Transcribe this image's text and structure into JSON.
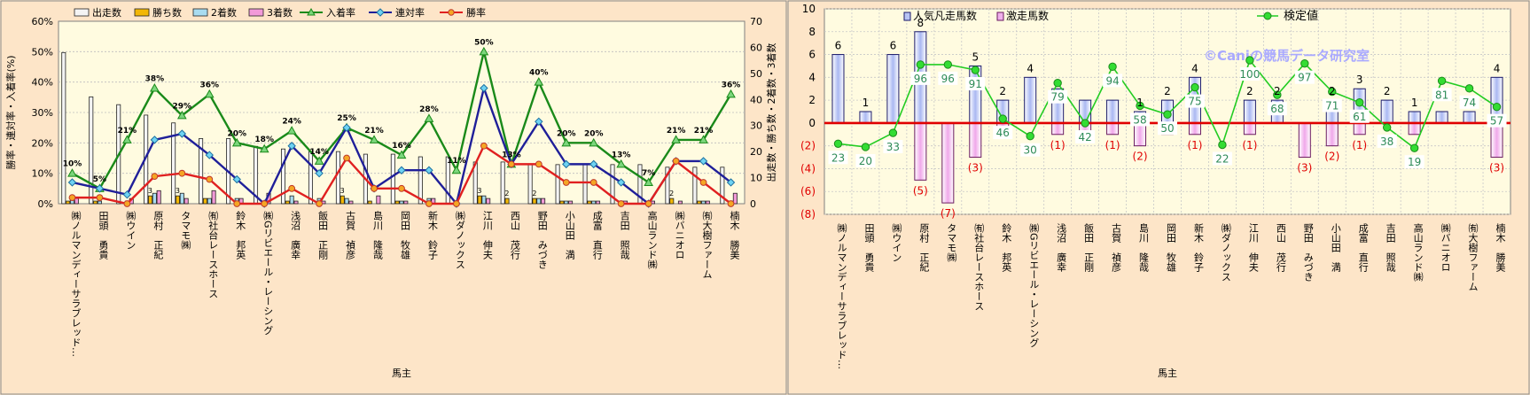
{
  "chart_data": [
    {
      "type": "bar",
      "title": "",
      "xlabel": "馬主",
      "ylabel_left": "勝率・連対率・入着率(%)",
      "ylabel_right": "出走数・勝ち数・2着数・3着数",
      "ylim_left": [
        0,
        60
      ],
      "ylim_right": [
        0,
        70
      ],
      "left_ticks": [
        "0%",
        "10%",
        "20%",
        "30%",
        "40%",
        "50%",
        "60%"
      ],
      "right_ticks": [
        "0",
        "10",
        "20",
        "30",
        "40",
        "50",
        "60",
        "70"
      ],
      "legend_position": "top",
      "categories": [
        "㈱ノルマンディーサラブレッド…",
        "田頭　勇貴",
        "㈱ウイン",
        "原村　正紀",
        "タマモ㈱",
        "㈲社台レースホース",
        "鈴木　邦英",
        "㈱Gリビエール・レーシング",
        "浅沼　廣幸",
        "飯田　正剛",
        "古賀　禎彦",
        "島川　隆哉",
        "岡田　牧雄",
        "新木　鈴子",
        "㈱ダノックス",
        "江川　伸夫",
        "西山　茂行",
        "野田　みづき",
        "小山田　満",
        "成富　直行",
        "吉田　照哉",
        "高山ランド㈱",
        "㈱バニオロ",
        "㈲大樹ファーム",
        "楠木　勝美"
      ],
      "series": [
        {
          "name": "出走数",
          "axis": "right",
          "color": "#f4f4f4",
          "values": [
            58,
            41,
            38,
            34,
            31,
            25,
            25,
            22,
            21,
            20,
            20,
            19,
            19,
            18,
            18,
            16,
            16,
            15,
            15,
            15,
            15,
            15,
            14,
            14,
            14
          ]
        },
        {
          "name": "勝ち数",
          "axis": "right",
          "color": "#f2b705",
          "values": [
            1,
            1,
            0,
            3,
            3,
            2,
            0,
            0,
            1,
            0,
            3,
            1,
            1,
            0,
            0,
            3,
            2,
            2,
            1,
            1,
            0,
            0,
            2,
            1,
            0
          ]
        },
        {
          "name": "2着数",
          "axis": "right",
          "color": "#a9dcf0",
          "values": [
            3,
            1,
            1,
            4,
            4,
            2,
            2,
            0,
            3,
            2,
            2,
            0,
            1,
            2,
            1,
            3,
            0,
            2,
            1,
            1,
            1,
            0,
            0,
            1,
            1
          ]
        },
        {
          "name": "3着数",
          "axis": "right",
          "color": "#f29ad8",
          "values": [
            2,
            0,
            2,
            5,
            2,
            5,
            2,
            4,
            1,
            1,
            1,
            3,
            1,
            2,
            0,
            2,
            0,
            2,
            1,
            1,
            1,
            1,
            1,
            1,
            4
          ]
        },
        {
          "name": "入着率",
          "axis": "left",
          "color": "#1a8a1a",
          "marker": "triangle",
          "values": [
            10,
            5,
            21,
            38,
            29,
            36,
            20,
            18,
            24,
            14,
            25,
            21,
            16,
            28,
            11,
            50,
            13,
            40,
            20,
            20,
            13,
            7,
            21,
            21,
            36
          ]
        },
        {
          "name": "連対率",
          "axis": "left",
          "color": "#1f1f99",
          "marker": "diamond",
          "values": [
            7,
            5,
            3,
            21,
            23,
            16,
            8,
            0,
            19,
            10,
            25,
            5,
            11,
            11,
            0,
            38,
            13,
            27,
            13,
            13,
            7,
            0,
            14,
            14,
            7
          ]
        },
        {
          "name": "勝率",
          "axis": "left",
          "color": "#e02020",
          "marker": "circle",
          "values": [
            2,
            2,
            0,
            9,
            10,
            8,
            0,
            0,
            5,
            0,
            15,
            5,
            5,
            0,
            0,
            19,
            13,
            13,
            7,
            7,
            0,
            0,
            14,
            7,
            0
          ]
        }
      ],
      "point_labels_series": "入着率",
      "point_labels": [
        "10%",
        "5%",
        "21%",
        "38%",
        "29%",
        "36%",
        "20%",
        "18%",
        "24%",
        "14%",
        "25%",
        "21%",
        "16%",
        "28%",
        "11%",
        "50%",
        "13%",
        "40%",
        "20%",
        "20%",
        "13%",
        "7%",
        "21%",
        "21%",
        "36%"
      ],
      "win_labels": [
        "",
        "",
        "",
        "3",
        "3",
        "",
        "",
        "",
        "",
        "",
        "3",
        "",
        "",
        "",
        "",
        "3",
        "2",
        "2",
        "",
        "",
        "",
        "",
        "2",
        "",
        ""
      ]
    },
    {
      "type": "bar",
      "title": "",
      "xlabel": "馬主",
      "ylim": [
        -8,
        10
      ],
      "y_ticks": [
        "10",
        "8",
        "6",
        "4",
        "2",
        "0",
        "(2)",
        "(4)",
        "(6)",
        "(8)"
      ],
      "legend_position": "top",
      "legend": [
        "人気凡走馬数",
        "激走馬数",
        "検定値"
      ],
      "watermark": "©Caniの競馬データ研究室",
      "categories": [
        "㈱ノルマンディーサラブレッド…",
        "田頭　勇貴",
        "㈱ウイン",
        "原村　正紀",
        "タマモ㈱",
        "㈲社台レースホース",
        "鈴木　邦英",
        "㈱Gリビエール・レーシング",
        "浅沼　廣幸",
        "飯田　正剛",
        "古賀　禎彦",
        "島川　隆哉",
        "岡田　牧雄",
        "新木　鈴子",
        "㈱ダノックス",
        "江川　伸夫",
        "西山　茂行",
        "野田　みづき",
        "小山田　満",
        "成富　直行",
        "吉田　照哉",
        "高山ランド㈱",
        "㈱バニオロ",
        "㈲大樹ファーム",
        "楠木　勝美"
      ],
      "series": [
        {
          "name": "激走馬数",
          "color": "#b8c4f4",
          "values": [
            6,
            1,
            6,
            8,
            0,
            5,
            2,
            4,
            3,
            2,
            2,
            1,
            2,
            4,
            0,
            2,
            2,
            0,
            2,
            3,
            2,
            1,
            1,
            1,
            4
          ]
        },
        {
          "name": "人気凡走馬数",
          "color": "#f0b0ec",
          "values": [
            0,
            0,
            0,
            -5,
            -7,
            -3,
            -1,
            0,
            -1,
            -1,
            -1,
            -2,
            -1,
            -1,
            0,
            -1,
            0,
            -3,
            -2,
            -1,
            0,
            -1,
            0,
            0,
            -3
          ]
        },
        {
          "name": "検定値",
          "color": "#22cc22",
          "values": [
            23,
            20,
            33,
            96,
            96,
            91,
            46,
            30,
            79,
            42,
            94,
            58,
            50,
            75,
            22,
            100,
            68,
            97,
            71,
            61,
            38,
            19,
            81,
            74,
            57
          ]
        }
      ],
      "positive_labels": [
        "6",
        "1",
        "6",
        "8",
        "",
        "5",
        "2",
        "4",
        "",
        "",
        "",
        "1",
        "2",
        "4",
        "",
        "2",
        "2",
        "",
        "2",
        "3",
        "2",
        "1",
        "",
        "",
        "4"
      ],
      "negative_labels": [
        "",
        "",
        "",
        "(5)",
        "(7)",
        "(3)",
        "",
        "",
        "(1)",
        "",
        "(1)",
        "(2)",
        "",
        "(1)",
        "",
        "(1)",
        "",
        "(3)",
        "(2)",
        "(1)",
        "",
        "",
        "",
        "",
        "(3)"
      ]
    }
  ]
}
